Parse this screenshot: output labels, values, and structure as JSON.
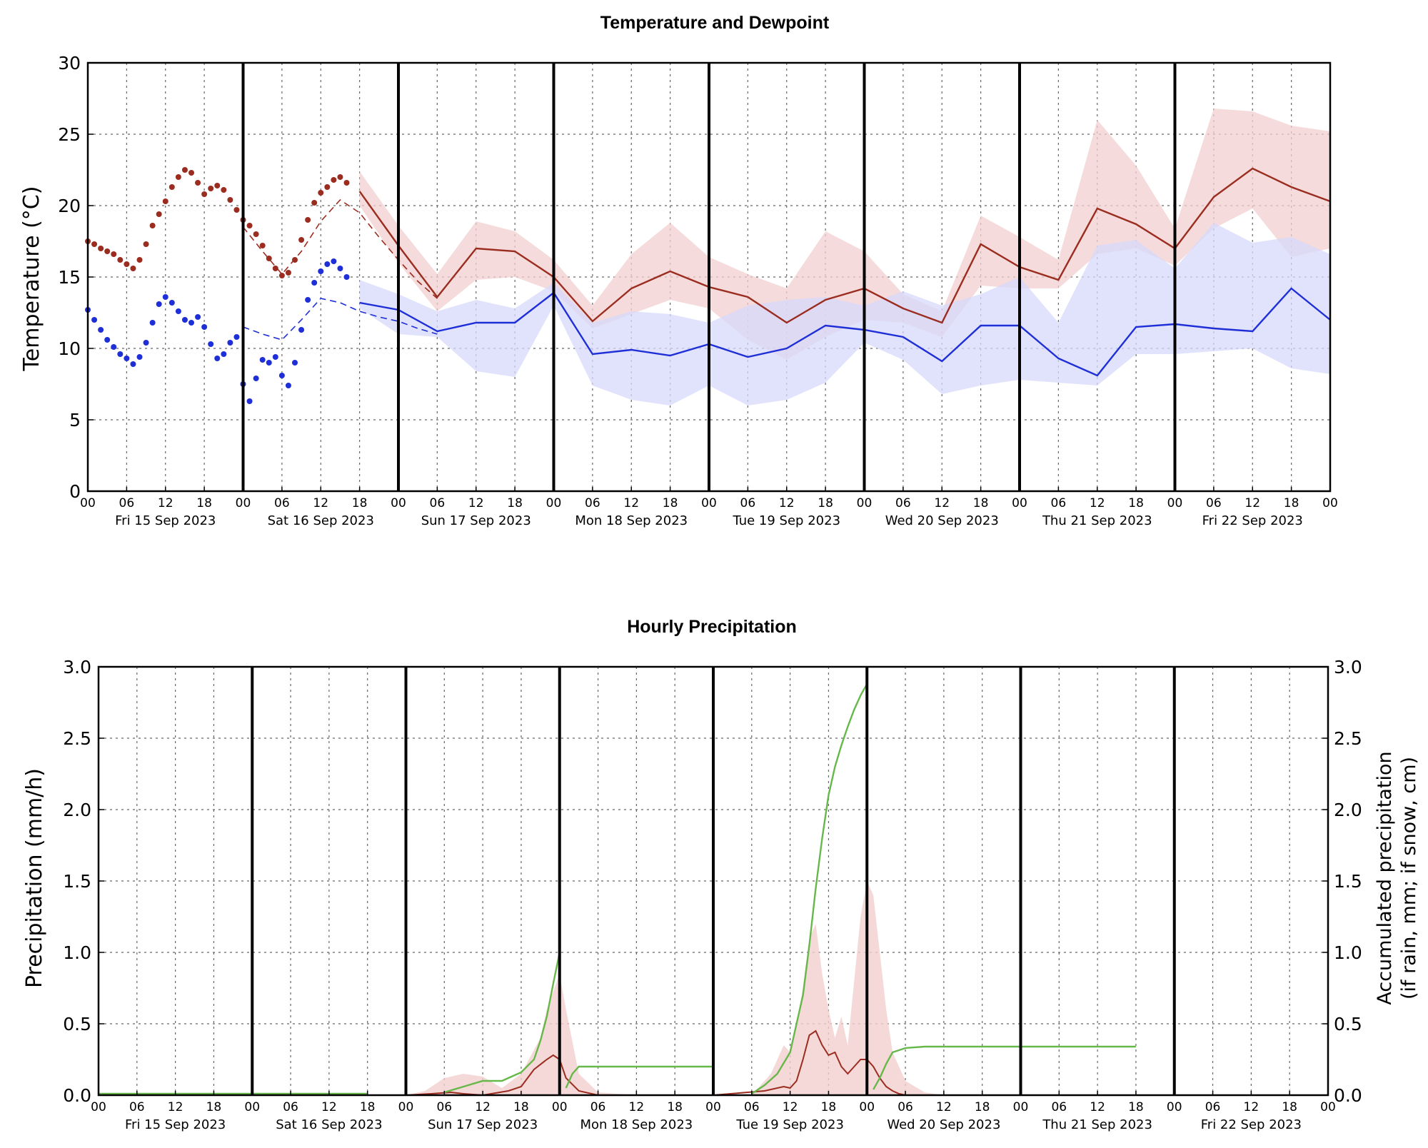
{
  "chart_data": [
    {
      "type": "line",
      "title": "Temperature and Dewpoint",
      "ylabel": "Temperature (°C)",
      "xlabel": "",
      "ylim": [
        0,
        30
      ],
      "yticks": [
        "0",
        "5",
        "10",
        "15",
        "20",
        "25",
        "30"
      ],
      "xlim_hours": [
        0,
        192
      ],
      "hour_ticks": [
        "00",
        "06",
        "12",
        "18"
      ],
      "days": [
        "Fri 15 Sep 2023",
        "Sat 16 Sep 2023",
        "Sun 17 Sep 2023",
        "Mon 18 Sep 2023",
        "Tue 19 Sep 2023",
        "Wed 20 Sep 2023",
        "Thu 21 Sep 2023",
        "Fri 22 Sep 2023"
      ],
      "grid": true,
      "colors": {
        "temperature": "#9b2d20",
        "dewpoint": "#1f2fd8",
        "temperature_band": "#f2cfcf",
        "dewpoint_band": "#d7d9fb"
      },
      "series": [
        {
          "kind": "observed_points",
          "role": "temperature",
          "x": [
            0,
            1,
            2,
            3,
            4,
            5,
            6,
            7,
            8,
            9,
            10,
            11,
            12,
            13,
            14,
            15,
            16,
            17,
            18,
            19,
            20,
            21,
            22,
            23,
            24,
            25,
            26,
            27,
            28,
            29,
            30,
            31,
            32,
            33,
            34,
            35,
            36,
            37,
            38,
            39,
            40
          ],
          "y": [
            17.5,
            17.3,
            17.0,
            16.8,
            16.6,
            16.2,
            15.9,
            15.6,
            16.2,
            17.3,
            18.6,
            19.4,
            20.3,
            21.3,
            22.0,
            22.5,
            22.3,
            21.6,
            20.8,
            21.2,
            21.4,
            21.1,
            20.4,
            19.7,
            19.0,
            18.6,
            18.0,
            17.2,
            16.3,
            15.6,
            15.1,
            15.3,
            16.2,
            17.6,
            19.0,
            20.2,
            20.9,
            21.3,
            21.8,
            22.0,
            21.6
          ]
        },
        {
          "kind": "observed_points",
          "role": "dewpoint",
          "x": [
            0,
            1,
            2,
            3,
            4,
            5,
            6,
            7,
            8,
            9,
            10,
            11,
            12,
            13,
            14,
            15,
            16,
            17,
            18,
            19,
            20,
            21,
            22,
            23,
            24,
            25,
            26,
            27,
            28,
            29,
            30,
            31,
            32,
            33,
            34,
            35,
            36,
            37,
            38,
            39,
            40
          ],
          "y": [
            12.7,
            12.0,
            11.3,
            10.6,
            10.1,
            9.6,
            9.3,
            8.9,
            9.4,
            10.4,
            11.8,
            13.1,
            13.6,
            13.2,
            12.6,
            12.0,
            11.8,
            12.2,
            11.5,
            10.3,
            9.3,
            9.6,
            10.4,
            10.8,
            7.5,
            6.3,
            7.9,
            9.2,
            9.0,
            9.4,
            8.1,
            7.4,
            9.0,
            11.3,
            13.4,
            14.6,
            15.4,
            15.9,
            16.1,
            15.6,
            15.0
          ]
        },
        {
          "kind": "model_dashed",
          "role": "temperature",
          "x": [
            24,
            27,
            30,
            33,
            36,
            39,
            42,
            45,
            48,
            51,
            54
          ],
          "y": [
            18.5,
            16.8,
            15.2,
            16.8,
            18.9,
            20.4,
            19.5,
            17.8,
            16.2,
            14.7,
            13.5
          ]
        },
        {
          "kind": "model_dashed",
          "role": "dewpoint",
          "x": [
            24,
            27,
            30,
            33,
            36,
            39,
            42,
            45,
            48,
            51,
            54
          ],
          "y": [
            11.5,
            11.0,
            10.6,
            12.0,
            13.5,
            13.2,
            12.6,
            12.2,
            11.9,
            11.4,
            11.0
          ]
        },
        {
          "kind": "forecast",
          "role": "temperature",
          "x": [
            42,
            48,
            54,
            60,
            66,
            72,
            78,
            84,
            90,
            96,
            102,
            108,
            114,
            120,
            126,
            132,
            138,
            144,
            150,
            156,
            162,
            168,
            174,
            180,
            186,
            192
          ],
          "y": [
            21.0,
            17.2,
            13.6,
            17.0,
            16.8,
            15.0,
            11.9,
            14.2,
            15.4,
            14.3,
            13.6,
            11.8,
            13.4,
            14.2,
            12.8,
            11.8,
            17.3,
            15.7,
            14.8,
            19.8,
            18.7,
            17.0,
            20.6,
            22.6,
            21.3,
            20.3
          ],
          "band_lower": [
            20.0,
            16.0,
            12.6,
            14.8,
            15.0,
            14.0,
            11.4,
            12.4,
            13.4,
            12.8,
            10.6,
            9.2,
            10.8,
            12.0,
            11.8,
            10.8,
            14.4,
            14.2,
            14.2,
            16.6,
            17.0,
            15.8,
            18.4,
            19.8,
            16.4,
            17.0
          ],
          "band_upper": [
            22.4,
            18.6,
            15.2,
            18.9,
            18.2,
            16.2,
            13.0,
            16.6,
            18.8,
            16.4,
            15.2,
            14.2,
            18.2,
            16.8,
            13.8,
            12.6,
            19.3,
            17.8,
            16.2,
            26.0,
            22.8,
            18.4,
            26.8,
            26.6,
            25.6,
            25.2
          ]
        },
        {
          "kind": "forecast",
          "role": "dewpoint",
          "x": [
            42,
            48,
            54,
            60,
            66,
            72,
            78,
            84,
            90,
            96,
            102,
            108,
            114,
            120,
            126,
            132,
            138,
            144,
            150,
            156,
            162,
            168,
            174,
            180,
            186,
            192
          ],
          "y": [
            13.2,
            12.7,
            11.2,
            11.8,
            11.8,
            13.9,
            9.6,
            9.9,
            9.5,
            10.3,
            9.4,
            10.0,
            11.6,
            11.3,
            10.8,
            9.1,
            11.6,
            11.6,
            9.3,
            8.1,
            11.5,
            11.7,
            11.4,
            11.2,
            14.2,
            12.0
          ],
          "band_lower": [
            12.8,
            11.0,
            10.8,
            8.4,
            8.0,
            13.0,
            7.4,
            6.4,
            6.0,
            7.4,
            6.0,
            6.4,
            7.6,
            10.4,
            9.2,
            6.8,
            7.4,
            7.8,
            7.6,
            7.4,
            9.6,
            9.6,
            9.8,
            10.0,
            8.6,
            8.2
          ],
          "band_upper": [
            14.8,
            13.8,
            12.6,
            13.4,
            12.8,
            14.6,
            11.8,
            12.6,
            12.4,
            11.8,
            13.0,
            13.4,
            13.6,
            13.0,
            14.0,
            13.0,
            13.8,
            15.0,
            11.8,
            17.2,
            17.6,
            15.6,
            18.8,
            17.4,
            17.8,
            16.6
          ]
        }
      ]
    },
    {
      "type": "line",
      "title": "Hourly Precipitation",
      "ylabel": "Precipitation (mm/h)",
      "ylabel_right_lines": [
        "Accumulated precipitation",
        "(if rain, mm; if snow, cm)"
      ],
      "xlabel": "",
      "ylim": [
        0,
        3.0
      ],
      "yticks": [
        "0.0",
        "0.5",
        "1.0",
        "1.5",
        "2.0",
        "2.5",
        "3.0"
      ],
      "xlim_hours": [
        0,
        192
      ],
      "hour_ticks": [
        "00",
        "06",
        "12",
        "18"
      ],
      "days": [
        "Fri 15 Sep 2023",
        "Sat 16 Sep 2023",
        "Sun 17 Sep 2023",
        "Mon 18 Sep 2023",
        "Tue 19 Sep 2023",
        "Wed 20 Sep 2023",
        "Thu 21 Sep 2023",
        "Fri 22 Sep 2023"
      ],
      "grid": true,
      "colors": {
        "precipitation": "#9b2d20",
        "accumulated": "#66b84a",
        "precipitation_band": "#f2cfcf",
        "left_axis_label": "#b03020",
        "right_axis_label": "#66b84a"
      },
      "series": [
        {
          "kind": "precip_band_upper",
          "role": "precipitation",
          "x": [
            48,
            51,
            54,
            57,
            60,
            63,
            66,
            69,
            70,
            72,
            73,
            75,
            78,
            84,
            90,
            96,
            102,
            105,
            107,
            108,
            109,
            110,
            111,
            112,
            113,
            114,
            115,
            116,
            117,
            118,
            119,
            120,
            121,
            122,
            123,
            124,
            126,
            129,
            132,
            144
          ],
          "y": [
            0,
            0.03,
            0.12,
            0.15,
            0.13,
            0.05,
            0.15,
            0.4,
            0.6,
            0.85,
            0.6,
            0.15,
            0.02,
            0,
            0,
            0,
            0,
            0.15,
            0.35,
            0.3,
            0.5,
            0.75,
            1.1,
            1.2,
            0.85,
            0.6,
            0.4,
            0.55,
            0.35,
            0.8,
            1.25,
            1.5,
            1.4,
            1.0,
            0.6,
            0.3,
            0.1,
            0.02,
            0,
            0
          ]
        },
        {
          "kind": "precip_line",
          "role": "precipitation",
          "x": [
            0,
            48,
            52,
            55,
            57,
            60,
            64,
            66,
            68,
            70,
            71,
            72,
            73,
            75,
            78,
            84,
            96,
            104,
            106,
            107,
            108,
            109,
            110,
            111,
            112,
            113,
            114,
            115,
            116,
            117,
            118,
            119,
            120,
            121,
            122,
            123,
            124,
            125,
            126,
            129,
            132,
            144
          ],
          "y": [
            0,
            0,
            0.01,
            0.02,
            0.01,
            0.0,
            0.03,
            0.06,
            0.18,
            0.25,
            0.28,
            0.25,
            0.12,
            0.03,
            0.0,
            0.0,
            0.0,
            0.03,
            0.05,
            0.06,
            0.05,
            0.1,
            0.25,
            0.42,
            0.45,
            0.35,
            0.28,
            0.3,
            0.2,
            0.15,
            0.2,
            0.25,
            0.25,
            0.2,
            0.12,
            0.06,
            0.03,
            0.01,
            0,
            0,
            0,
            0
          ]
        },
        {
          "kind": "accumulated",
          "role": "accumulated",
          "x": [
            0,
            42
          ],
          "y": [
            0.01,
            0.01
          ]
        },
        {
          "kind": "accumulated",
          "role": "accumulated",
          "x": [
            54,
            57,
            60,
            63,
            66,
            68,
            69,
            70,
            71,
            72
          ],
          "y": [
            0.02,
            0.06,
            0.1,
            0.1,
            0.16,
            0.25,
            0.38,
            0.55,
            0.78,
            1.0
          ]
        },
        {
          "kind": "accumulated",
          "role": "accumulated",
          "x": [
            73,
            74,
            75,
            78,
            84,
            96
          ],
          "y": [
            0.05,
            0.15,
            0.2,
            0.2,
            0.2,
            0.2
          ]
        },
        {
          "kind": "accumulated",
          "role": "accumulated",
          "x": [
            102,
            104,
            106,
            108,
            110,
            111,
            112,
            113,
            114,
            115,
            116,
            117,
            118,
            119,
            120
          ],
          "y": [
            0.01,
            0.07,
            0.15,
            0.3,
            0.7,
            1.05,
            1.45,
            1.8,
            2.1,
            2.3,
            2.45,
            2.58,
            2.7,
            2.8,
            2.88
          ]
        },
        {
          "kind": "accumulated",
          "role": "accumulated",
          "x": [
            121,
            122,
            123,
            124,
            126,
            129,
            132,
            144,
            162
          ],
          "y": [
            0.04,
            0.12,
            0.22,
            0.3,
            0.33,
            0.34,
            0.34,
            0.34,
            0.34
          ]
        }
      ]
    }
  ]
}
